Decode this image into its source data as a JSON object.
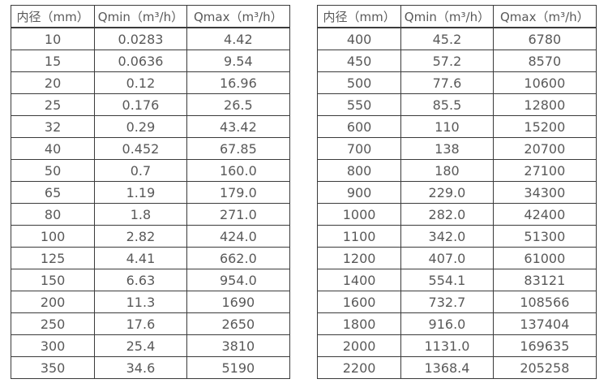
{
  "page": {
    "background": "#ffffff",
    "border_color": "#3b3b3b",
    "text_color": "#595959"
  },
  "tables": [
    {
      "title": "small-diameter-flow-specs",
      "headers": [
        "内径（mm）",
        "Qmin（m³/h）",
        "Qmax（m³/h）"
      ],
      "rows": [
        [
          "10",
          "0.0283",
          "4.42"
        ],
        [
          "15",
          "0.0636",
          "9.54"
        ],
        [
          "20",
          "0.12",
          "16.96"
        ],
        [
          "25",
          "0.176",
          "26.5"
        ],
        [
          "32",
          "0.29",
          "43.42"
        ],
        [
          "40",
          "0.452",
          "67.85"
        ],
        [
          "50",
          "0.7",
          "160.0"
        ],
        [
          "65",
          "1.19",
          "179.0"
        ],
        [
          "80",
          "1.8",
          "271.0"
        ],
        [
          "100",
          "2.82",
          "424.0"
        ],
        [
          "125",
          "4.41",
          "662.0"
        ],
        [
          "150",
          "6.63",
          "954.0"
        ],
        [
          "200",
          "11.3",
          "1690"
        ],
        [
          "250",
          "17.6",
          "2650"
        ],
        [
          "300",
          "25.4",
          "3810"
        ],
        [
          "350",
          "34.6",
          "5190"
        ]
      ]
    },
    {
      "title": "large-diameter-flow-specs",
      "headers": [
        "内径（mm）",
        "Qmin（m³/h）",
        "Qmax（m³/h）"
      ],
      "rows": [
        [
          "400",
          "45.2",
          "6780"
        ],
        [
          "450",
          "57.2",
          "8570"
        ],
        [
          "500",
          "77.6",
          "10600"
        ],
        [
          "550",
          "85.5",
          "12800"
        ],
        [
          "600",
          "110",
          "15200"
        ],
        [
          "700",
          "138",
          "20700"
        ],
        [
          "800",
          "180",
          "27100"
        ],
        [
          "900",
          "229.0",
          "34300"
        ],
        [
          "1000",
          "282.0",
          "42400"
        ],
        [
          "1100",
          "342.0",
          "51300"
        ],
        [
          "1200",
          "407.0",
          "61000"
        ],
        [
          "1400",
          "554.1",
          "83121"
        ],
        [
          "1600",
          "732.7",
          "108566"
        ],
        [
          "1800",
          "916.0",
          "137404"
        ],
        [
          "2000",
          "1131.0",
          "169635"
        ],
        [
          "2200",
          "1368.4",
          "205258"
        ]
      ]
    }
  ]
}
